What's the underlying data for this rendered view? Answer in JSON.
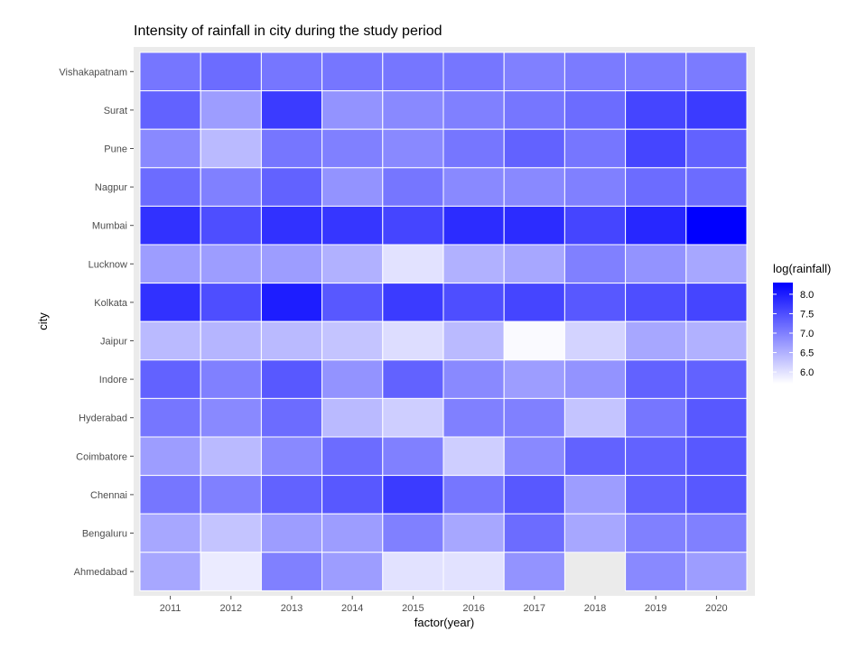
{
  "chart_data": {
    "type": "heatmap",
    "title": "Intensity of rainfall in city during the study period",
    "xlabel": "factor(year)",
    "ylabel": "city",
    "x_categories": [
      "2011",
      "2012",
      "2013",
      "2014",
      "2015",
      "2016",
      "2017",
      "2018",
      "2019",
      "2020"
    ],
    "y_categories": [
      "Vishakapatnam",
      "Surat",
      "Pune",
      "Nagpur",
      "Mumbai",
      "Lucknow",
      "Kolkata",
      "Jaipur",
      "Indore",
      "Hyderabad",
      "Coimbatore",
      "Chennai",
      "Bengaluru",
      "Ahmedabad"
    ],
    "values": [
      [
        7.1,
        7.2,
        7.1,
        7.1,
        7.1,
        7.1,
        7.0,
        7.05,
        7.05,
        7.05
      ],
      [
        7.3,
        6.7,
        7.7,
        6.8,
        6.9,
        7.0,
        7.1,
        7.2,
        7.6,
        7.7
      ],
      [
        6.9,
        6.4,
        7.1,
        7.0,
        6.9,
        7.1,
        7.3,
        7.1,
        7.6,
        7.3
      ],
      [
        7.2,
        7.0,
        7.3,
        6.8,
        7.1,
        6.9,
        6.9,
        7.0,
        7.2,
        7.2
      ],
      [
        7.8,
        7.5,
        7.8,
        7.75,
        7.6,
        7.85,
        7.85,
        7.6,
        7.9,
        8.3
      ],
      [
        6.7,
        6.7,
        6.7,
        6.5,
        6.0,
        6.5,
        6.6,
        7.0,
        6.8,
        6.6
      ],
      [
        7.8,
        7.5,
        8.0,
        7.4,
        7.7,
        7.5,
        7.6,
        7.4,
        7.5,
        7.6
      ],
      [
        6.4,
        6.45,
        6.4,
        6.3,
        6.05,
        6.4,
        5.75,
        6.15,
        6.6,
        6.5
      ],
      [
        7.3,
        7.0,
        7.4,
        6.8,
        7.3,
        6.9,
        6.7,
        6.8,
        7.3,
        7.3
      ],
      [
        7.1,
        6.9,
        7.2,
        6.4,
        6.2,
        7.0,
        7.0,
        6.3,
        7.1,
        7.4
      ],
      [
        6.7,
        6.4,
        6.9,
        7.2,
        7.0,
        6.2,
        6.9,
        7.3,
        7.3,
        7.4
      ],
      [
        7.1,
        7.0,
        7.3,
        7.4,
        7.7,
        7.1,
        7.4,
        6.7,
        7.3,
        7.4
      ],
      [
        6.6,
        6.3,
        6.7,
        6.7,
        7.0,
        6.6,
        7.2,
        6.6,
        7.0,
        7.0
      ],
      [
        6.6,
        5.9,
        7.0,
        6.7,
        6.0,
        6.0,
        6.8,
        null,
        6.9,
        6.7
      ]
    ],
    "legend": {
      "title": "log(rainfall)",
      "ticks": [
        8.0,
        7.5,
        7.0,
        6.5,
        6.0
      ],
      "tick_labels": [
        "8.0",
        "7.5",
        "7.0",
        "6.5",
        "6.0"
      ],
      "range": [
        5.7,
        8.3
      ],
      "color_low": "#ffffff",
      "color_high": "#0000ff",
      "position": "right"
    },
    "panel_background": "#ebebeb",
    "grid": true
  }
}
